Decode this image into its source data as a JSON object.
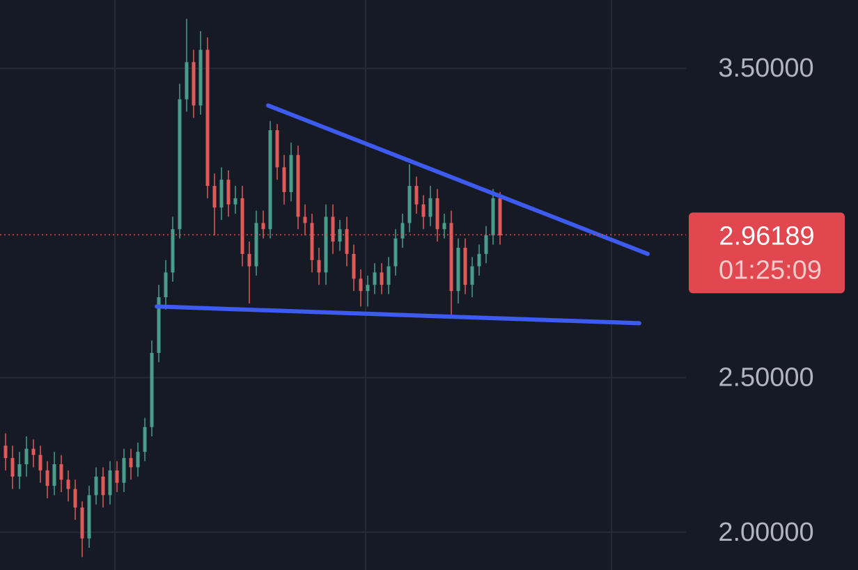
{
  "chart_data": {
    "type": "candlestick",
    "open": [
      2.28,
      2.24,
      2.18,
      2.22,
      2.27,
      2.25,
      2.2,
      2.15,
      2.22,
      2.17,
      2.14,
      2.08,
      1.98,
      2.12,
      2.18,
      2.12,
      2.2,
      2.16,
      2.24,
      2.21,
      2.26,
      2.34,
      2.58,
      2.76,
      2.84,
      2.98,
      3.4,
      3.52,
      3.38,
      3.56,
      3.12,
      3.05,
      3.14,
      3.06,
      3.08,
      2.9,
      2.86,
      3.0,
      2.98,
      3.3,
      3.18,
      3.1,
      3.22,
      3.02,
      3.0,
      2.88,
      2.84,
      3.02,
      2.94,
      2.98,
      2.9,
      2.82,
      2.78,
      2.8,
      2.84,
      2.8,
      2.86,
      2.95,
      3.0,
      3.12,
      3.06,
      3.02,
      3.08,
      2.98,
      3.0,
      2.78,
      2.92,
      2.8,
      2.86,
      2.9,
      2.96,
      3.08
    ],
    "high": [
      2.32,
      2.28,
      2.26,
      2.31,
      2.3,
      2.28,
      2.23,
      2.26,
      2.25,
      2.2,
      2.17,
      2.1,
      2.15,
      2.21,
      2.21,
      2.23,
      2.23,
      2.27,
      2.27,
      2.29,
      2.37,
      2.62,
      2.8,
      2.88,
      3.02,
      3.45,
      3.66,
      3.56,
      3.62,
      3.6,
      3.16,
      3.18,
      3.17,
      3.12,
      3.12,
      2.94,
      3.04,
      3.04,
      3.33,
      3.32,
      3.22,
      3.26,
      3.25,
      3.06,
      3.03,
      2.92,
      3.06,
      3.06,
      3.01,
      3.02,
      2.93,
      2.85,
      2.83,
      2.87,
      2.87,
      2.89,
      2.98,
      3.03,
      3.19,
      3.15,
      3.09,
      3.12,
      3.11,
      3.03,
      3.04,
      2.95,
      2.95,
      2.89,
      2.93,
      2.99,
      3.11,
      3.1
    ],
    "low": [
      2.2,
      2.14,
      2.14,
      2.18,
      2.21,
      2.16,
      2.11,
      2.12,
      2.13,
      2.1,
      2.04,
      1.92,
      1.95,
      2.09,
      2.08,
      2.09,
      2.13,
      2.13,
      2.17,
      2.18,
      2.23,
      2.31,
      2.55,
      2.72,
      2.81,
      2.95,
      3.36,
      3.34,
      3.35,
      3.08,
      2.96,
      3.01,
      3.02,
      3.03,
      2.86,
      2.74,
      2.83,
      2.95,
      2.95,
      3.14,
      3.06,
      3.07,
      2.98,
      2.96,
      2.84,
      2.8,
      2.8,
      2.9,
      2.91,
      2.86,
      2.78,
      2.73,
      2.73,
      2.77,
      2.77,
      2.77,
      2.83,
      2.92,
      2.97,
      3.03,
      2.98,
      2.99,
      2.94,
      2.95,
      2.7,
      2.74,
      2.77,
      2.76,
      2.83,
      2.87,
      2.93,
      2.93
    ],
    "close": [
      2.24,
      2.18,
      2.22,
      2.27,
      2.25,
      2.2,
      2.15,
      2.22,
      2.17,
      2.14,
      2.08,
      1.98,
      2.12,
      2.18,
      2.12,
      2.2,
      2.16,
      2.24,
      2.21,
      2.26,
      2.34,
      2.58,
      2.76,
      2.84,
      2.98,
      3.4,
      3.52,
      3.38,
      3.56,
      3.12,
      3.05,
      3.14,
      3.06,
      3.08,
      2.9,
      2.86,
      3.0,
      2.98,
      3.3,
      3.18,
      3.1,
      3.22,
      3.02,
      3.0,
      2.88,
      2.84,
      3.02,
      2.94,
      2.98,
      2.9,
      2.82,
      2.78,
      2.8,
      2.84,
      2.8,
      2.86,
      2.95,
      3.0,
      3.12,
      3.06,
      3.02,
      3.08,
      2.98,
      3.0,
      2.78,
      2.92,
      2.8,
      2.86,
      2.9,
      2.96,
      3.08,
      2.96
    ],
    "up_color": "#4a9d8b",
    "down_color": "#e05a5a",
    "ylim": [
      1.878,
      3.721
    ],
    "yticks": [
      {
        "value": 2.0,
        "label": "2.00000"
      },
      {
        "value": 2.5,
        "label": "2.50000"
      },
      {
        "value": 3.5,
        "label": "3.50000"
      }
    ],
    "grid": true,
    "trendlines": [
      {
        "color": "#3d5af1",
        "points": [
          [
            37.7,
            3.38
          ],
          [
            92.2,
            2.9
          ]
        ]
      },
      {
        "color": "#3d5af1",
        "points": [
          [
            21.7,
            2.73
          ],
          [
            91.0,
            2.676
          ]
        ]
      }
    ],
    "price_label": {
      "value": 2.96189,
      "label": "2.96189",
      "color": "#e0474f"
    },
    "countdown": "01:25:09"
  }
}
